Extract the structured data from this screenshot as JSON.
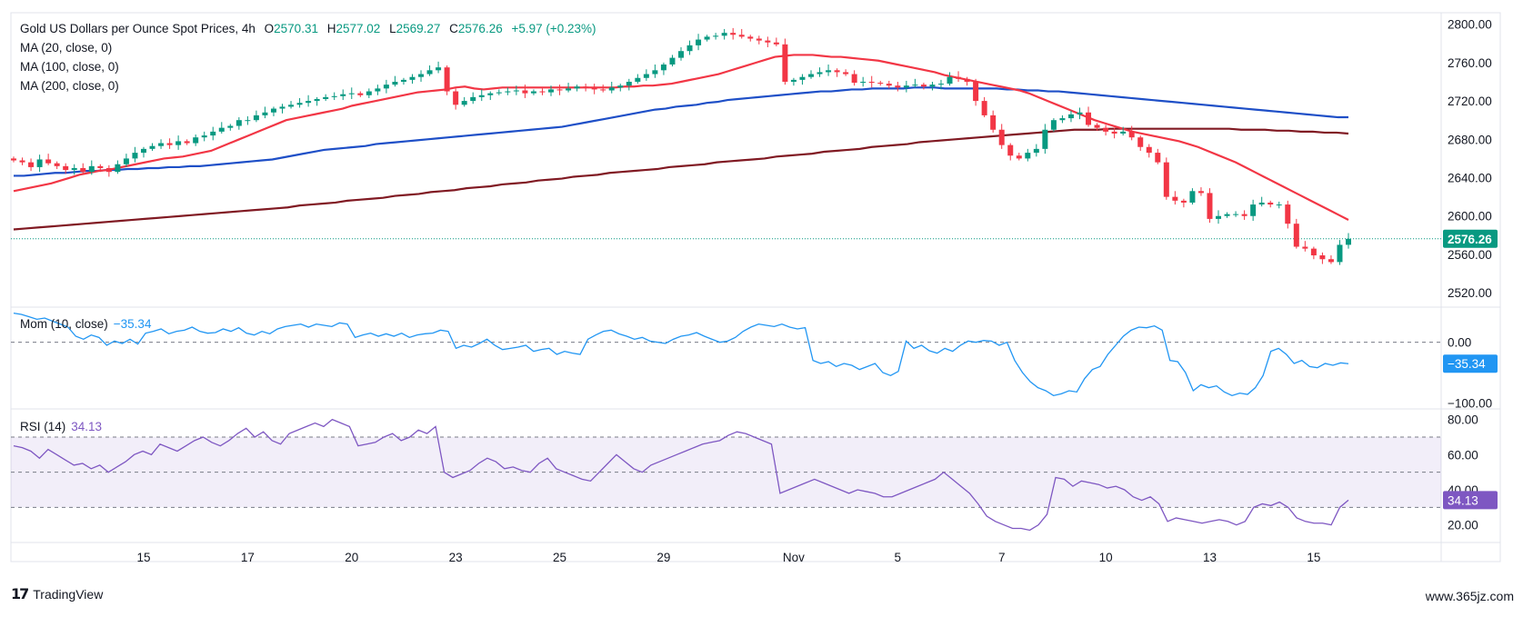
{
  "header": {
    "symbol": "Gold US Dollars per Ounce Spot Prices, 4h",
    "o_label": "O",
    "o_value": "2570.31",
    "h_label": "H",
    "h_value": "2577.02",
    "l_label": "L",
    "l_value": "2569.27",
    "c_label": "C",
    "c_value": "2576.26",
    "change": "+5.97 (+0.23%)",
    "ma20": "MA (20, close, 0)",
    "ma100": "MA (100, close, 0)",
    "ma200": "MA (200, close, 0)"
  },
  "mom": {
    "label": "Mom (10, close)",
    "value": "−35.34"
  },
  "rsi": {
    "label": "RSI (14)",
    "value": "34.13"
  },
  "footer": {
    "brand": "TradingView",
    "watermark": "www.365jz.com"
  },
  "chart_data": [
    {
      "type": "candlestick",
      "title": "Gold US Dollars per Ounce Spot Prices, 4h",
      "last_price": 2576.26,
      "last_price_label": "2576.26",
      "ylim": [
        2505,
        2812
      ],
      "y_ticks": [
        2520,
        2560,
        2600,
        2640,
        2680,
        2720,
        2760,
        2800
      ],
      "y_tick_labels": [
        "2520.00",
        "2560.00",
        "2600.00",
        "2640.00",
        "2680.00",
        "2720.00",
        "2760.00",
        "2800.00"
      ],
      "x_ticks": [
        {
          "label": "15",
          "bar": 15
        },
        {
          "label": "17",
          "bar": 27
        },
        {
          "label": "20",
          "bar": 39
        },
        {
          "label": "23",
          "bar": 51
        },
        {
          "label": "25",
          "bar": 63
        },
        {
          "label": "29",
          "bar": 75
        },
        {
          "label": "Nov",
          "bar": 90
        },
        {
          "label": "5",
          "bar": 102
        },
        {
          "label": "7",
          "bar": 114
        },
        {
          "label": "10",
          "bar": 126
        },
        {
          "label": "13",
          "bar": 138
        },
        {
          "label": "15",
          "bar": 150
        }
      ],
      "close": [
        2658,
        2656,
        2651,
        2659,
        2655,
        2652,
        2648,
        2650,
        2646,
        2652,
        2650,
        2646,
        2654,
        2660,
        2666,
        2670,
        2673,
        2676,
        2674,
        2678,
        2676,
        2682,
        2684,
        2688,
        2692,
        2694,
        2700,
        2700,
        2705,
        2708,
        2712,
        2714,
        2716,
        2718,
        2720,
        2722,
        2724,
        2725,
        2727,
        2728,
        2726,
        2730,
        2733,
        2737,
        2740,
        2742,
        2745,
        2748,
        2752,
        2755,
        2730,
        2716,
        2720,
        2724,
        2726,
        2728,
        2729,
        2730,
        2731,
        2728,
        2730,
        2729,
        2732,
        2731,
        2733,
        2735,
        2734,
        2732,
        2731,
        2734,
        2736,
        2740,
        2744,
        2748,
        2752,
        2758,
        2765,
        2772,
        2778,
        2784,
        2787,
        2788,
        2791,
        2789,
        2787,
        2785,
        2783,
        2781,
        2779,
        2740,
        2742,
        2745,
        2748,
        2750,
        2752,
        2750,
        2748,
        2739,
        2740,
        2739,
        2738,
        2736,
        2734,
        2736,
        2737,
        2735,
        2737,
        2738,
        2745,
        2743,
        2740,
        2720,
        2705,
        2690,
        2674,
        2663,
        2660,
        2666,
        2670,
        2690,
        2700,
        2702,
        2706,
        2708,
        2695,
        2692,
        2688,
        2686,
        2688,
        2682,
        2672,
        2666,
        2656,
        2620,
        2616,
        2614,
        2626,
        2624,
        2597,
        2600,
        2602,
        2602,
        2600,
        2612,
        2614,
        2612,
        2612,
        2592,
        2568,
        2566,
        2559,
        2555,
        2552,
        2570,
        2576.26
      ],
      "ma20": [
        2626,
        2628,
        2630,
        2632,
        2634,
        2637,
        2640,
        2643,
        2645,
        2647,
        2648,
        2650,
        2652,
        2654,
        2656,
        2658,
        2660,
        2661,
        2662,
        2664,
        2666,
        2668,
        2672,
        2676,
        2680,
        2684,
        2688,
        2692,
        2696,
        2700,
        2702,
        2704,
        2706,
        2708,
        2710,
        2712,
        2715,
        2717,
        2719,
        2721,
        2723,
        2725,
        2727,
        2729,
        2730,
        2731,
        2732,
        2734,
        2735,
        2733,
        2732,
        2733,
        2734,
        2734,
        2734,
        2734,
        2734,
        2734,
        2734,
        2734,
        2734,
        2734,
        2734,
        2734,
        2734,
        2735,
        2735,
        2736,
        2736,
        2737,
        2738,
        2740,
        2742,
        2744,
        2746,
        2748,
        2751,
        2754,
        2757,
        2760,
        2763,
        2766,
        2767,
        2768,
        2768,
        2768,
        2767,
        2766,
        2766,
        2765,
        2764,
        2763,
        2762,
        2760,
        2758,
        2756,
        2754,
        2752,
        2750,
        2747,
        2745,
        2743,
        2741,
        2739,
        2737,
        2735,
        2733,
        2731,
        2728,
        2724,
        2720,
        2716,
        2712,
        2708,
        2704,
        2700,
        2697,
        2694,
        2691,
        2688,
        2686,
        2684,
        2682,
        2680,
        2678,
        2675,
        2672,
        2668,
        2664,
        2660,
        2656,
        2651,
        2646,
        2641,
        2636,
        2631,
        2626,
        2621,
        2616,
        2611,
        2606,
        2601,
        2596
      ],
      "ma100": [
        2642,
        2642,
        2643,
        2644,
        2645,
        2645,
        2646,
        2647,
        2647,
        2648,
        2648,
        2649,
        2649,
        2650,
        2650,
        2651,
        2651,
        2652,
        2652,
        2653,
        2654,
        2655,
        2656,
        2657,
        2658,
        2659,
        2661,
        2663,
        2665,
        2667,
        2669,
        2670,
        2671,
        2672,
        2673,
        2675,
        2676,
        2677,
        2678,
        2679,
        2680,
        2681,
        2682,
        2683,
        2684,
        2685,
        2686,
        2687,
        2688,
        2689,
        2690,
        2691,
        2692,
        2693,
        2695,
        2697,
        2699,
        2701,
        2703,
        2705,
        2707,
        2709,
        2711,
        2712,
        2714,
        2715,
        2716,
        2718,
        2719,
        2721,
        2722,
        2723,
        2724,
        2725,
        2726,
        2727,
        2728,
        2729,
        2730,
        2730,
        2731,
        2732,
        2732,
        2733,
        2733,
        2733,
        2733,
        2734,
        2734,
        2734,
        2733,
        2733,
        2733,
        2733,
        2733,
        2733,
        2732,
        2732,
        2731,
        2731,
        2730,
        2730,
        2729,
        2728,
        2727,
        2726,
        2725,
        2724,
        2723,
        2722,
        2721,
        2720,
        2719,
        2718,
        2717,
        2716,
        2715,
        2714,
        2713,
        2712,
        2711,
        2710,
        2709,
        2708,
        2707,
        2706,
        2705,
        2704,
        2703,
        2703
      ],
      "ma200": [
        2586,
        2587,
        2588,
        2589,
        2590,
        2591,
        2592,
        2593,
        2594,
        2595,
        2596,
        2597,
        2598,
        2599,
        2600,
        2601,
        2602,
        2603,
        2604,
        2605,
        2606,
        2607,
        2608,
        2609,
        2611,
        2612,
        2613,
        2614,
        2616,
        2617,
        2618,
        2619,
        2621,
        2622,
        2623,
        2625,
        2626,
        2627,
        2629,
        2630,
        2631,
        2633,
        2634,
        2635,
        2637,
        2638,
        2639,
        2641,
        2642,
        2643,
        2645,
        2646,
        2647,
        2648,
        2649,
        2651,
        2652,
        2653,
        2654,
        2656,
        2657,
        2658,
        2659,
        2660,
        2662,
        2663,
        2664,
        2665,
        2667,
        2668,
        2669,
        2670,
        2672,
        2673,
        2674,
        2675,
        2677,
        2678,
        2679,
        2680,
        2681,
        2682,
        2683,
        2684,
        2685,
        2686,
        2687,
        2688,
        2689,
        2690,
        2690,
        2690,
        2691,
        2691,
        2691,
        2691,
        2691,
        2691,
        2691,
        2691,
        2691,
        2691,
        2691,
        2690,
        2690,
        2690,
        2689,
        2689,
        2688,
        2688,
        2687,
        2687,
        2686
      ]
    },
    {
      "type": "line",
      "title": "Mom (10, close)",
      "last_value": -35.34,
      "last_value_label": "−35.34",
      "ylim": [
        -110,
        55
      ],
      "y_ticks": [
        0,
        -100
      ],
      "y_tick_labels": [
        "0.00",
        "−100.00"
      ],
      "values": [
        48,
        46,
        42,
        38,
        40,
        35,
        30,
        25,
        10,
        5,
        12,
        8,
        -5,
        2,
        -2,
        5,
        -3,
        15,
        18,
        22,
        14,
        18,
        20,
        25,
        18,
        15,
        16,
        22,
        18,
        24,
        15,
        12,
        18,
        14,
        22,
        26,
        28,
        30,
        25,
        30,
        28,
        26,
        32,
        30,
        8,
        12,
        15,
        10,
        14,
        10,
        15,
        8,
        12,
        14,
        15,
        20,
        18,
        -10,
        -5,
        -8,
        -2,
        5,
        -5,
        -12,
        -10,
        -8,
        -5,
        -15,
        -12,
        -10,
        -20,
        -15,
        -18,
        -20,
        5,
        12,
        18,
        20,
        14,
        10,
        5,
        8,
        2,
        0,
        -2,
        5,
        10,
        12,
        16,
        10,
        5,
        0,
        2,
        8,
        18,
        25,
        30,
        28,
        26,
        30,
        25,
        22,
        24,
        -30,
        -35,
        -32,
        -40,
        -35,
        -38,
        -45,
        -40,
        -35,
        -50,
        -55,
        -48,
        2,
        -10,
        -5,
        -14,
        -18,
        -10,
        -15,
        -5,
        2,
        0,
        3,
        2,
        -5,
        0,
        -30,
        -50,
        -65,
        -75,
        -80,
        -88,
        -85,
        -80,
        -82,
        -60,
        -45,
        -40,
        -20,
        -5,
        10,
        20,
        25,
        24,
        27,
        20,
        -30,
        -32,
        -50,
        -80,
        -70,
        -75,
        -72,
        -82,
        -88,
        -84,
        -86,
        -75,
        -55,
        -15,
        -10,
        -20,
        -35,
        -30,
        -40,
        -42,
        -35,
        -38,
        -34,
        -35.34
      ]
    },
    {
      "type": "line",
      "title": "RSI (14)",
      "last_value": 34.13,
      "last_value_label": "34.13",
      "ylim": [
        10,
        85
      ],
      "y_ticks": [
        20,
        40,
        60,
        80
      ],
      "y_tick_labels": [
        "20.00",
        "40.00",
        "60.00",
        "80.00"
      ],
      "levels": [
        30,
        50,
        70
      ],
      "values": [
        65,
        64,
        62,
        58,
        63,
        60,
        57,
        54,
        55,
        52,
        54,
        50,
        53,
        56,
        60,
        62,
        60,
        66,
        64,
        62,
        65,
        68,
        70,
        67,
        65,
        68,
        72,
        75,
        70,
        73,
        68,
        66,
        72,
        74,
        76,
        78,
        76,
        80,
        78,
        76,
        65,
        66,
        67,
        70,
        72,
        68,
        70,
        74,
        72,
        76,
        50,
        47,
        49,
        51,
        55,
        58,
        56,
        52,
        53,
        51,
        50,
        55,
        58,
        52,
        50,
        48,
        46,
        45,
        50,
        55,
        60,
        56,
        52,
        50,
        54,
        56,
        58,
        60,
        62,
        64,
        66,
        67,
        68,
        71,
        73,
        72,
        70,
        68,
        66,
        38,
        40,
        42,
        44,
        46,
        44,
        42,
        40,
        38,
        40,
        39,
        38,
        36,
        36,
        38,
        40,
        42,
        44,
        46,
        50,
        46,
        42,
        38,
        32,
        25,
        22,
        20,
        18,
        18,
        17,
        20,
        26,
        47,
        46,
        42,
        45,
        44,
        43,
        41,
        42,
        40,
        36,
        34,
        36,
        32,
        22,
        24,
        23,
        22,
        21,
        22,
        23,
        22,
        20,
        22,
        30,
        32,
        31,
        33,
        30,
        24,
        22,
        21,
        21,
        20,
        30,
        34.13
      ]
    }
  ]
}
